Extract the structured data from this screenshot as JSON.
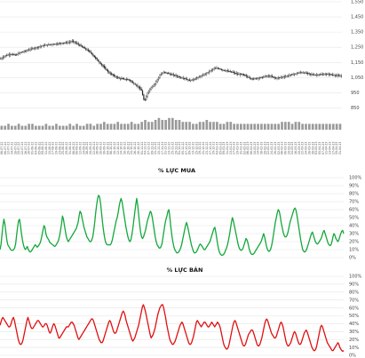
{
  "chart_data": [
    {
      "type": "candlestick",
      "title": "",
      "ylim": [
        800,
        1550
      ],
      "y_ticks": [
        850,
        950,
        1050,
        1150,
        1250,
        1350,
        1450,
        1550
      ],
      "y_tick_labels": [
        "850",
        "950",
        "1,050",
        "1,150",
        "1,250",
        "1,350",
        "1,450",
        "1,550"
      ],
      "grid": true,
      "x_dates": [
        "06-07-22",
        "08-07-22",
        "12-07-22",
        "14-07-22",
        "18-07-22",
        "20-07-22",
        "22-07-22",
        "26-07-22",
        "28-07-22",
        "01-08-22",
        "03-08-22",
        "05-08-22",
        "09-08-22",
        "11-08-22",
        "15-08-22",
        "17-08-22",
        "19-08-22",
        "23-08-22",
        "25-08-22",
        "29-08-22",
        "31-08-22",
        "06-09-22",
        "08-09-22",
        "12-09-22",
        "14-09-22",
        "16-09-22",
        "20-09-22",
        "22-09-22",
        "26-09-22",
        "28-09-22",
        "30-09-22",
        "04-10-22",
        "06-10-22",
        "10-10-22",
        "12-10-22",
        "14-10-22",
        "18-10-22",
        "20-10-22",
        "24-10-22",
        "26-10-22",
        "28-10-22",
        "01-11-22",
        "03-11-22",
        "07-11-22",
        "09-11-22",
        "11-11-22",
        "15-11-22",
        "17-11-22",
        "21-11-22",
        "23-11-22",
        "25-11-22",
        "29-11-22",
        "01-12-22",
        "05-12-22",
        "07-12-22",
        "09-12-22",
        "13-12-22",
        "15-12-22",
        "19-12-22",
        "21-12-22",
        "23-12-22",
        "27-12-22",
        "29-12-22",
        "03-01-23",
        "05-01-23",
        "09-01-23",
        "11-01-23",
        "13-01-23",
        "17-01-23",
        "19-01-23",
        "31-01-23",
        "02-02-23",
        "06-02-23",
        "08-02-23",
        "10-02-23",
        "14-02-23",
        "16-02-23",
        "20-02-23",
        "22-02-23",
        "24-02-23",
        "28-02-23",
        "02-03-23",
        "06-03-23",
        "08-03-23",
        "10-03-23",
        "14-03-23",
        "16-03-23",
        "20-03-23",
        "22-03-23",
        "24-03-23",
        "28-03-23",
        "30-03-23",
        "03-04-23",
        "05-04-23",
        "07-04-23",
        "11-04-23",
        "13-04-23",
        "17-04-23",
        "19-04-23",
        "21-04-23"
      ],
      "close_path": [
        [
          0,
          1175
        ],
        [
          4,
          1195
        ],
        [
          8,
          1205
        ],
        [
          12,
          1198
        ],
        [
          16,
          1215
        ],
        [
          20,
          1225
        ],
        [
          25,
          1240
        ],
        [
          30,
          1250
        ],
        [
          35,
          1262
        ],
        [
          40,
          1268
        ],
        [
          45,
          1272
        ],
        [
          50,
          1278
        ],
        [
          55,
          1282
        ],
        [
          58,
          1290
        ],
        [
          61,
          1278
        ],
        [
          65,
          1258
        ],
        [
          70,
          1232
        ],
        [
          73,
          1215
        ],
        [
          76,
          1185
        ],
        [
          80,
          1150
        ],
        [
          84,
          1115
        ],
        [
          88,
          1080
        ],
        [
          92,
          1060
        ],
        [
          96,
          1045
        ],
        [
          100,
          1040
        ],
        [
          104,
          1035
        ],
        [
          108,
          1010
        ],
        [
          112,
          985
        ],
        [
          114,
          965
        ],
        [
          116,
          905
        ],
        [
          117,
          900
        ],
        [
          119,
          950
        ],
        [
          122,
          985
        ],
        [
          125,
          1010
        ],
        [
          129,
          1065
        ],
        [
          132,
          1085
        ],
        [
          135,
          1080
        ],
        [
          138,
          1070
        ],
        [
          141,
          1065
        ],
        [
          145,
          1052
        ],
        [
          149,
          1045
        ],
        [
          153,
          1030
        ],
        [
          157,
          1040
        ],
        [
          161,
          1055
        ],
        [
          165,
          1070
        ],
        [
          169,
          1090
        ],
        [
          173,
          1110
        ],
        [
          176,
          1112
        ],
        [
          180,
          1100
        ],
        [
          184,
          1092
        ],
        [
          188,
          1085
        ],
        [
          192,
          1072
        ],
        [
          196,
          1070
        ],
        [
          200,
          1055
        ],
        [
          204,
          1040
        ],
        [
          207,
          1045
        ],
        [
          211,
          1050
        ],
        [
          215,
          1060
        ],
        [
          219,
          1058
        ],
        [
          223,
          1045
        ],
        [
          227,
          1052
        ],
        [
          231,
          1058
        ],
        [
          235,
          1068
        ],
        [
          239,
          1075
        ],
        [
          243,
          1085
        ],
        [
          247,
          1080
        ],
        [
          251,
          1072
        ],
        [
          255,
          1068
        ],
        [
          259,
          1070
        ],
        [
          264,
          1072
        ],
        [
          268,
          1070
        ],
        [
          271,
          1065
        ],
        [
          275,
          1060
        ],
        [
          277,
          1058
        ]
      ],
      "volume": [
        2,
        2,
        3,
        2,
        2,
        3,
        2,
        2,
        3,
        3,
        2,
        2,
        2,
        3,
        2,
        2,
        3,
        2,
        2,
        2,
        3,
        2,
        3,
        2,
        2,
        3,
        3,
        2,
        3,
        3,
        4,
        3,
        3,
        3,
        4,
        3,
        3,
        3,
        4,
        3,
        3,
        4,
        5,
        4,
        4,
        5,
        6,
        5,
        5,
        6,
        6,
        5,
        5,
        4,
        4,
        4,
        3,
        3,
        4,
        4,
        5,
        4,
        4,
        4,
        3,
        3,
        4,
        4,
        3,
        3,
        3,
        3,
        3,
        3,
        3,
        3,
        3,
        3,
        3,
        3,
        3,
        3,
        4,
        4,
        4,
        3,
        4,
        4,
        3,
        3,
        3,
        3,
        3,
        3,
        3,
        3,
        3,
        3,
        3,
        3
      ]
    },
    {
      "type": "line",
      "title": "% LỰC MUA",
      "ylim": [
        0,
        100
      ],
      "y_tick_labels": [
        "0%",
        "10%",
        "20%",
        "30%",
        "40%",
        "50%",
        "60%",
        "70%",
        "80%",
        "90%",
        "100%"
      ],
      "grid": true,
      "series": [
        {
          "color": "#14a83b",
          "values": [
            10,
            16,
            28,
            40,
            48,
            42,
            32,
            22,
            16,
            14,
            12,
            10,
            9,
            9,
            10,
            12,
            17,
            28,
            38,
            46,
            48,
            40,
            30,
            22,
            16,
            12,
            10,
            12,
            14,
            10,
            8,
            7,
            8,
            10,
            12,
            14,
            16,
            15,
            13,
            14,
            16,
            18,
            22,
            28,
            34,
            40,
            38,
            30,
            26,
            24,
            22,
            19,
            18,
            17,
            16,
            15,
            14,
            15,
            17,
            19,
            22,
            27,
            34,
            42,
            52,
            48,
            40,
            33,
            26,
            22,
            20,
            22,
            24,
            26,
            28,
            30,
            32,
            34,
            36,
            40,
            44,
            52,
            58,
            56,
            50,
            44,
            38,
            34,
            30,
            26,
            24,
            22,
            20,
            20,
            22,
            26,
            34,
            44,
            56,
            66,
            74,
            78,
            76,
            68,
            56,
            44,
            34,
            26,
            20,
            17,
            16,
            16,
            16,
            16,
            18,
            22,
            28,
            34,
            40,
            46,
            50,
            56,
            64,
            70,
            74,
            70,
            62,
            54,
            46,
            38,
            32,
            26,
            22,
            20,
            22,
            28,
            36,
            46,
            56,
            66,
            74,
            66,
            54,
            42,
            32,
            26,
            24,
            26,
            30,
            34,
            40,
            46,
            50,
            54,
            58,
            56,
            50,
            42,
            34,
            26,
            20,
            16,
            14,
            12,
            12,
            14,
            18,
            26,
            34,
            42,
            48,
            52,
            58,
            60,
            50,
            38,
            28,
            20,
            14,
            10,
            8,
            6,
            6,
            7,
            9,
            12,
            16,
            22,
            28,
            34,
            40,
            44,
            40,
            34,
            28,
            22,
            16,
            12,
            8,
            6,
            6,
            7,
            9,
            12,
            15,
            17,
            16,
            14,
            12,
            10,
            10,
            12,
            14,
            16,
            18,
            20,
            24,
            28,
            32,
            36,
            38,
            32,
            24,
            16,
            10,
            6,
            4,
            3,
            3,
            4,
            6,
            9,
            12,
            16,
            22,
            28,
            36,
            44,
            50,
            46,
            40,
            34,
            28,
            22,
            16,
            12,
            10,
            9,
            10,
            12,
            16,
            20,
            24,
            22,
            18,
            12,
            8,
            5,
            4,
            4,
            5,
            7,
            9,
            11,
            13,
            15,
            17,
            19,
            22,
            26,
            30,
            26,
            20,
            14,
            10,
            8,
            8,
            10,
            14,
            20,
            28,
            36,
            44,
            50,
            56,
            60,
            58,
            52,
            44,
            38,
            32,
            28,
            26,
            26,
            28,
            32,
            38,
            44,
            48,
            52,
            56,
            60,
            62,
            60,
            54,
            46,
            38,
            30,
            22,
            16,
            10,
            8,
            7,
            8,
            10,
            14,
            18,
            22,
            26,
            30,
            32,
            28,
            24,
            20,
            18,
            17,
            18,
            20,
            22,
            24,
            28,
            32,
            34,
            30,
            26,
            22,
            18,
            16,
            15,
            16,
            20,
            26,
            30,
            28,
            24,
            22,
            20,
            22,
            26,
            30,
            33,
            34,
            30
          ]
        }
      ]
    },
    {
      "type": "line",
      "title": "% LỰC BÁN",
      "ylim": [
        0,
        100
      ],
      "y_tick_labels": [
        "0%",
        "10%",
        "20%",
        "30%",
        "40%",
        "50%",
        "60%",
        "70%",
        "80%",
        "90%",
        "100%"
      ],
      "grid": true,
      "series": [
        {
          "color": "#e01010",
          "values": [
            38,
            42,
            46,
            48,
            46,
            44,
            42,
            40,
            38,
            36,
            36,
            38,
            42,
            46,
            48,
            44,
            38,
            32,
            26,
            20,
            16,
            14,
            14,
            16,
            20,
            26,
            32,
            38,
            44,
            48,
            44,
            40,
            36,
            34,
            34,
            36,
            38,
            40,
            42,
            44,
            44,
            42,
            40,
            38,
            36,
            36,
            38,
            40,
            40,
            38,
            34,
            30,
            28,
            30,
            34,
            38,
            40,
            38,
            34,
            30,
            26,
            22,
            22,
            24,
            26,
            28,
            30,
            32,
            34,
            36,
            36,
            36,
            38,
            40,
            42,
            42,
            40,
            38,
            34,
            30,
            26,
            22,
            20,
            22,
            24,
            26,
            28,
            30,
            32,
            34,
            36,
            38,
            40,
            42,
            44,
            46,
            46,
            44,
            40,
            36,
            32,
            28,
            24,
            20,
            18,
            16,
            16,
            18,
            22,
            26,
            30,
            34,
            38,
            42,
            44,
            42,
            38,
            34,
            30,
            28,
            28,
            30,
            34,
            38,
            42,
            46,
            50,
            54,
            56,
            54,
            50,
            44,
            40,
            36,
            32,
            28,
            24,
            20,
            18,
            20,
            22,
            26,
            30,
            34,
            38,
            44,
            50,
            56,
            62,
            64,
            60,
            56,
            50,
            44,
            38,
            32,
            26,
            22,
            24,
            26,
            30,
            34,
            40,
            46,
            52,
            56,
            60,
            62,
            64,
            64,
            60,
            54,
            48,
            40,
            34,
            28,
            22,
            18,
            16,
            14,
            14,
            16,
            18,
            22,
            26,
            30,
            34,
            38,
            40,
            42,
            40,
            36,
            32,
            28,
            24,
            20,
            16,
            14,
            14,
            16,
            20,
            24,
            30,
            36,
            42,
            44,
            42,
            40,
            38,
            36,
            38,
            40,
            42,
            42,
            40,
            38,
            36,
            36,
            38,
            40,
            42,
            40,
            38,
            36,
            38,
            40,
            42,
            40,
            38,
            34,
            28,
            22,
            16,
            12,
            10,
            8,
            8,
            10,
            14,
            20,
            26,
            32,
            38,
            42,
            44,
            42,
            38,
            34,
            30,
            26,
            22,
            18,
            14,
            12,
            12,
            14,
            18,
            22,
            26,
            28,
            30,
            32,
            32,
            30,
            26,
            22,
            18,
            14,
            12,
            12,
            14,
            18,
            22,
            28,
            34,
            40,
            44,
            46,
            44,
            40,
            36,
            32,
            28,
            26,
            24,
            22,
            22,
            24,
            28,
            32,
            36,
            40,
            42,
            40,
            36,
            30,
            24,
            18,
            14,
            12,
            12,
            14,
            16,
            20,
            24,
            28,
            30,
            28,
            24,
            20,
            16,
            14,
            14,
            16,
            20,
            24,
            28,
            30,
            32,
            30,
            26,
            22,
            18,
            14,
            10,
            8,
            6,
            6,
            8,
            12,
            18,
            24,
            30,
            36,
            38,
            36,
            32,
            28,
            24,
            20,
            16,
            14,
            12,
            10,
            8,
            6,
            6,
            8,
            10,
            12,
            14,
            16,
            14,
            10,
            8,
            6,
            5,
            6
          ]
        }
      ]
    }
  ]
}
